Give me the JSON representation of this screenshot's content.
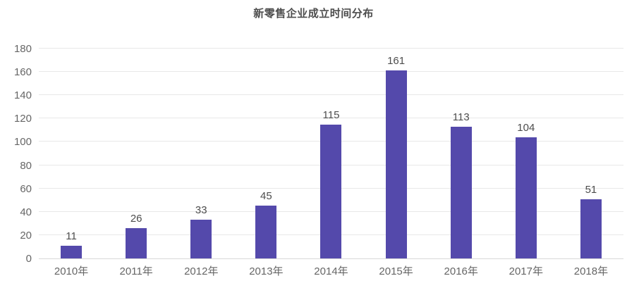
{
  "chart_data": {
    "type": "bar",
    "title": "新零售企业成立时间分布",
    "categories": [
      "2010年",
      "2011年",
      "2012年",
      "2013年",
      "2014年",
      "2015年",
      "2016年",
      "2017年",
      "2018年"
    ],
    "values": [
      11,
      26,
      33,
      45,
      115,
      161,
      113,
      104,
      51
    ],
    "xlabel": "",
    "ylabel": "",
    "ylim": [
      0,
      180
    ],
    "ytick_step": 20,
    "yticks": [
      0,
      20,
      40,
      60,
      80,
      100,
      120,
      140,
      160,
      180
    ],
    "grid": true,
    "legend_position": "none",
    "value_labels": true
  },
  "colors": {
    "bar": "#5449ab",
    "title_text": "#4d4d4d",
    "value_text": "#4d4d4d",
    "axis_text": "#666666",
    "gridline": "#e8e8e8",
    "axis_line": "#d9d9d9",
    "background": "#ffffff"
  }
}
